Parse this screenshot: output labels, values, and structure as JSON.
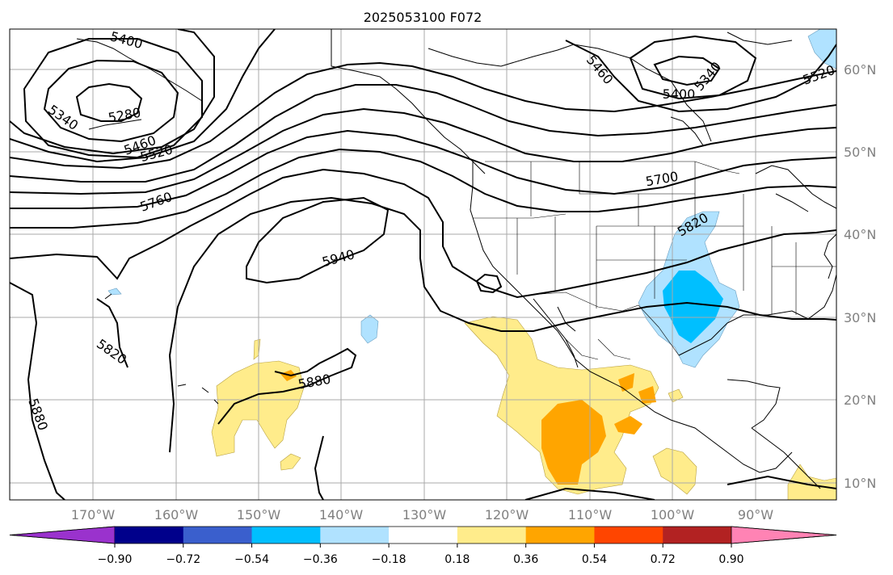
{
  "title": "2025053100 F072",
  "map": {
    "longitude_labels": [
      "170°W",
      "160°W",
      "150°W",
      "140°W",
      "130°W",
      "120°W",
      "110°W",
      "100°W",
      "90°W"
    ],
    "latitude_labels": [
      "60°N",
      "50°N",
      "40°N",
      "30°N",
      "20°N",
      "10°N"
    ],
    "contour_labels": [
      {
        "text": "5400",
        "rotation": 15
      },
      {
        "text": "5340",
        "rotation": 35
      },
      {
        "text": "5280",
        "rotation": -10
      },
      {
        "text": "5460",
        "rotation": -20
      },
      {
        "text": "5520",
        "rotation": -15
      },
      {
        "text": "5760",
        "rotation": -20
      },
      {
        "text": "5940",
        "rotation": -15
      },
      {
        "text": "5820",
        "rotation": 35
      },
      {
        "text": "5880",
        "rotation": 70
      },
      {
        "text": "5880",
        "rotation": -10
      },
      {
        "text": "5460",
        "rotation": 50
      },
      {
        "text": "5400",
        "rotation": 0
      },
      {
        "text": "5340",
        "rotation": -50
      },
      {
        "text": "5520",
        "rotation": -20
      },
      {
        "text": "5700",
        "rotation": -10
      },
      {
        "text": "5820",
        "rotation": -30
      }
    ]
  },
  "colorbar": {
    "tick_labels": [
      "−0.90",
      "−0.72",
      "−0.54",
      "−0.36",
      "−0.18",
      "0.18",
      "0.36",
      "0.54",
      "0.72",
      "0.90"
    ],
    "colors": [
      "#9a32cd",
      "#00008b",
      "#3a5fcd",
      "#00bfff",
      "#b0e2ff",
      "#ffffff",
      "#ffec8b",
      "#ffa500",
      "#ff4500",
      "#b22222",
      "#ff83b4"
    ]
  },
  "colors": {
    "land_outline": "#000000",
    "contour": "#000000",
    "grid": "#aaaaaa",
    "axis_text": "#808080"
  }
}
